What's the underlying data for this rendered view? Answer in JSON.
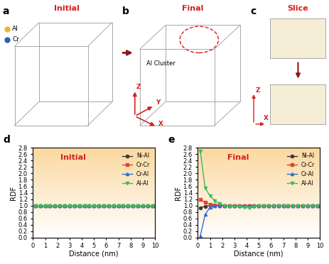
{
  "panel_labels": [
    "a",
    "b",
    "c",
    "d",
    "e"
  ],
  "structure_panels": {
    "a": {
      "title": "Initial",
      "legend": [
        {
          "name": "Al",
          "color": "#e8b730"
        },
        {
          "name": "Cr",
          "color": "#2f5fb3"
        }
      ]
    },
    "b": {
      "title": "Final",
      "annotation": "Al Cluster",
      "axes": [
        "Z",
        "Y",
        "X"
      ]
    },
    "c": {
      "title": "Slice",
      "axes": [
        "Z",
        "X"
      ]
    }
  },
  "chart_data": [
    {
      "type": "line",
      "title": "Initial",
      "x_label": "Distance (nm)",
      "y_label": "RDF",
      "xlim": [
        0,
        10
      ],
      "xticks": [
        0,
        1,
        2,
        3,
        4,
        5,
        6,
        7,
        8,
        9,
        10
      ],
      "ylim": [
        0.0,
        2.8
      ],
      "yticks": [
        0.0,
        0.2,
        0.4,
        0.6,
        0.8,
        1.0,
        1.2,
        1.4,
        1.6,
        1.8,
        2.0,
        2.2,
        2.4,
        2.6,
        2.8
      ],
      "legend": "upper right",
      "x": [
        0.2,
        0.6,
        1.0,
        1.4,
        1.8,
        2.2,
        2.6,
        3.0,
        3.4,
        3.8,
        4.2,
        4.6,
        5.0,
        5.4,
        5.8,
        6.2,
        6.6,
        7.0,
        7.4,
        7.8,
        8.2,
        8.6,
        9.0,
        9.4,
        9.8
      ],
      "series": [
        {
          "name": "Ni-Al",
          "color": "#3a3a3a",
          "marker": "circle",
          "values": [
            1.0,
            1.0,
            1.0,
            1.0,
            1.0,
            1.0,
            1.0,
            1.0,
            1.0,
            1.0,
            1.0,
            1.0,
            1.0,
            1.0,
            1.0,
            1.0,
            1.0,
            1.0,
            1.0,
            1.0,
            1.0,
            1.0,
            1.0,
            1.0,
            1.0
          ]
        },
        {
          "name": "Cr-Cr",
          "color": "#e8412c",
          "marker": "square",
          "values": [
            1.0,
            1.0,
            1.0,
            1.0,
            1.0,
            1.0,
            1.0,
            1.0,
            1.0,
            1.0,
            1.0,
            1.0,
            1.0,
            1.0,
            1.0,
            1.0,
            1.0,
            1.0,
            1.0,
            1.0,
            1.0,
            1.0,
            1.0,
            1.0,
            1.0
          ]
        },
        {
          "name": "Cr-Al",
          "color": "#2f6fd6",
          "marker": "triangle_up",
          "values": [
            1.0,
            1.0,
            1.0,
            1.0,
            1.0,
            1.0,
            1.0,
            1.0,
            1.0,
            1.0,
            1.0,
            1.0,
            1.0,
            1.0,
            1.0,
            1.0,
            1.0,
            1.0,
            1.0,
            1.0,
            1.0,
            1.0,
            1.0,
            1.0,
            1.0
          ]
        },
        {
          "name": "Al-Al",
          "color": "#3dbb5b",
          "marker": "triangle_down",
          "values": [
            1.0,
            1.0,
            1.0,
            1.0,
            1.0,
            1.0,
            1.0,
            1.0,
            1.0,
            1.0,
            1.0,
            1.0,
            1.0,
            1.0,
            1.0,
            1.0,
            1.0,
            1.0,
            1.0,
            1.0,
            1.0,
            1.0,
            1.0,
            1.0,
            1.0
          ]
        }
      ]
    },
    {
      "type": "line",
      "title": "Final",
      "x_label": "Distance (nm)",
      "y_label": "RDF",
      "xlim": [
        0,
        10
      ],
      "xticks": [
        0,
        1,
        2,
        3,
        4,
        5,
        6,
        7,
        8,
        9,
        10
      ],
      "ylim": [
        0.0,
        2.8
      ],
      "yticks": [
        0.0,
        0.2,
        0.4,
        0.6,
        0.8,
        1.0,
        1.2,
        1.4,
        1.6,
        1.8,
        2.0,
        2.2,
        2.4,
        2.6,
        2.8
      ],
      "legend": "upper right",
      "x": [
        0.2,
        0.6,
        1.0,
        1.4,
        1.8,
        2.2,
        2.6,
        3.0,
        3.4,
        3.8,
        4.2,
        4.6,
        5.0,
        5.4,
        5.8,
        6.2,
        6.6,
        7.0,
        7.4,
        7.8,
        8.2,
        8.6,
        9.0,
        9.4,
        9.8
      ],
      "series": [
        {
          "name": "Ni-Al",
          "color": "#3a3a3a",
          "marker": "circle",
          "values": [
            0.93,
            0.98,
            1.0,
            1.0,
            1.0,
            1.0,
            1.0,
            1.0,
            1.0,
            1.0,
            1.0,
            1.0,
            1.0,
            1.0,
            1.0,
            1.0,
            1.0,
            1.0,
            1.0,
            1.0,
            1.0,
            1.0,
            1.0,
            1.0,
            1.0
          ]
        },
        {
          "name": "Cr-Cr",
          "color": "#e8412c",
          "marker": "square",
          "values": [
            1.18,
            1.1,
            1.04,
            1.02,
            1.01,
            1.0,
            1.0,
            1.0,
            1.0,
            1.0,
            1.0,
            1.0,
            1.0,
            1.0,
            1.0,
            1.0,
            1.0,
            1.0,
            1.0,
            1.0,
            1.0,
            1.0,
            1.0,
            1.0,
            1.0
          ]
        },
        {
          "name": "Cr-Al",
          "color": "#2f6fd6",
          "marker": "triangle_up",
          "values": [
            0.05,
            0.72,
            0.95,
            0.99,
            1.0,
            1.0,
            1.0,
            1.0,
            1.0,
            1.0,
            1.0,
            1.0,
            1.0,
            1.0,
            1.0,
            1.0,
            1.0,
            1.0,
            1.0,
            1.0,
            1.0,
            1.0,
            1.0,
            1.0,
            1.0
          ]
        },
        {
          "name": "Al-Al",
          "color": "#3dbb5b",
          "marker": "triangle_down",
          "values": [
            2.7,
            1.55,
            1.3,
            1.15,
            1.05,
            1.0,
            0.98,
            0.97,
            0.97,
            0.94,
            0.93,
            0.97,
            0.99,
            1.0,
            1.0,
            1.0,
            1.0,
            1.0,
            1.0,
            1.0,
            1.0,
            1.0,
            1.0,
            1.0,
            1.0
          ]
        }
      ]
    }
  ]
}
